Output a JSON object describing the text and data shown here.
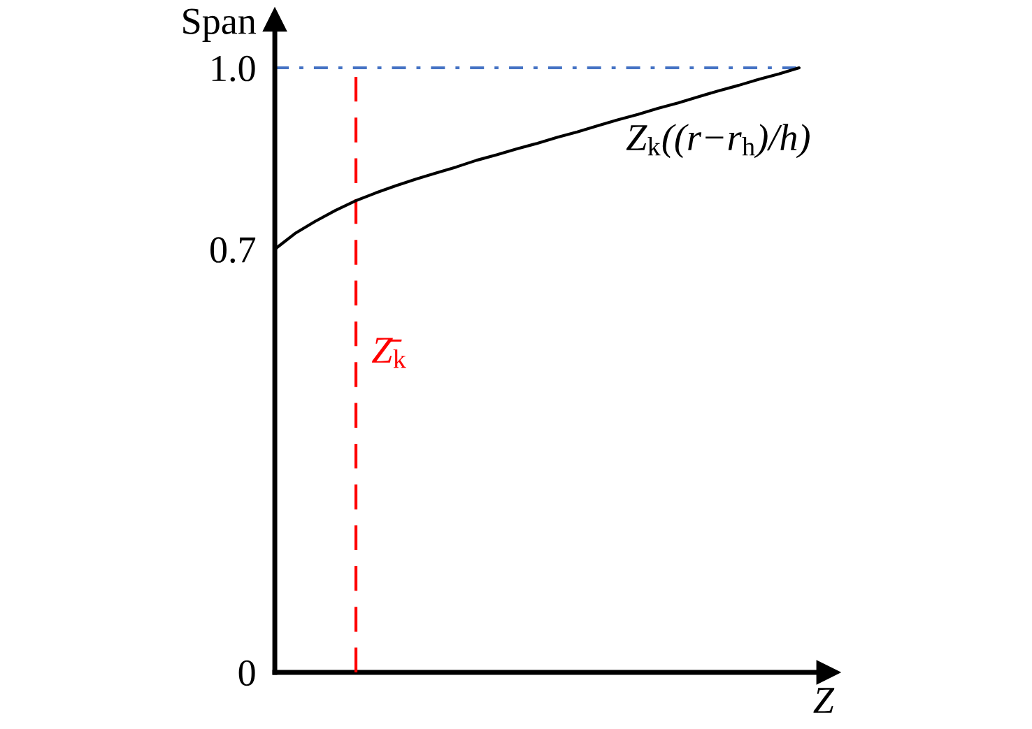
{
  "chart_data": {
    "type": "line",
    "xlabel": "Z",
    "ylabel": "Span",
    "categories": [
      null,
      null,
      null,
      null,
      null,
      null,
      null,
      null,
      null,
      null,
      null,
      null,
      null,
      null,
      null,
      null,
      null,
      null,
      null,
      null,
      null,
      null,
      null,
      null,
      null,
      null,
      null
    ],
    "series": [
      {
        "name": "Z$_{k}$((r−r$_{h}$)/h)",
        "color": "#000000",
        "values": [
          0.7,
          0.726,
          0.746,
          0.764,
          0.78,
          0.793,
          0.805,
          0.816,
          0.826,
          0.836,
          0.847,
          0.856,
          0.866,
          0.875,
          0.885,
          0.894,
          0.904,
          0.914,
          0.923,
          0.933,
          0.942,
          0.952,
          0.962,
          0.971,
          0.981,
          0.99,
          1.0
        ]
      }
    ],
    "ylim": [
      0,
      1.08
    ],
    "yticks": [
      0,
      0.7,
      {
        "value": 1,
        "label": "1.0"
      }
    ],
    "ref_lines": [
      {
        "axis": "y",
        "value": 1,
        "color": "#4472c4",
        "line_style": "dashdot"
      }
    ],
    "annotations": [
      "Z̄$_{k}$"
    ]
  }
}
